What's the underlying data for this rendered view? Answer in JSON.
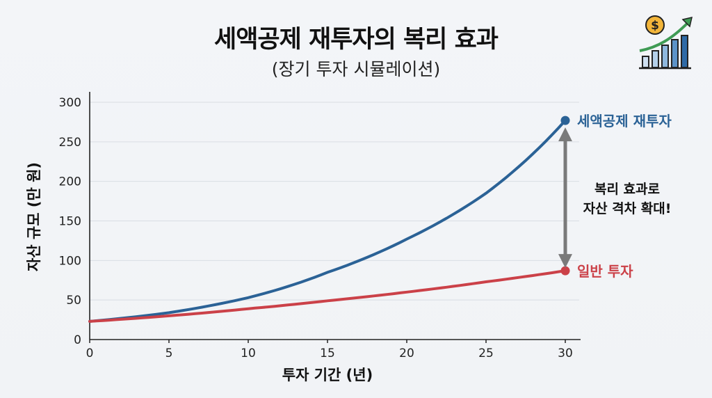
{
  "header": {
    "title": "세액공제 재투자의 복리 효과",
    "subtitle": "(장기 투자 시뮬레이션)"
  },
  "chart_data": {
    "type": "line",
    "title": "세액공제 재투자의 복리 효과",
    "subtitle": "(장기 투자 시뮬레이션)",
    "xlabel": "투자 기간 (년)",
    "ylabel": "자산 규모 (만 원)",
    "xlim": [
      0,
      30
    ],
    "ylim": [
      0,
      300
    ],
    "xticks": [
      0,
      5,
      10,
      15,
      20,
      25,
      30
    ],
    "yticks": [
      0,
      50,
      100,
      150,
      200,
      250,
      300
    ],
    "grid": true,
    "series": [
      {
        "name": "세액공제 재투자",
        "color": "#2b6296",
        "x": [
          0,
          5,
          10,
          15,
          20,
          25,
          30
        ],
        "values": [
          23,
          34,
          53,
          85,
          127,
          185,
          277
        ]
      },
      {
        "name": "일반 투자",
        "color": "#cb4148",
        "x": [
          0,
          5,
          10,
          15,
          20,
          25,
          30
        ],
        "values": [
          23,
          30,
          39,
          49,
          60,
          73,
          87
        ]
      }
    ],
    "annotation": {
      "lines": [
        "복리 효과로",
        "자산 격차 확대!"
      ],
      "at_x": 30
    }
  },
  "colors": {
    "arrow": "#7a7a7a",
    "grid": "#d9dde3",
    "axis": "#222222",
    "logo_coin": "#f2b53a",
    "logo_bar": "#8fb8de",
    "logo_arrow": "#3f9b54"
  },
  "icons": {
    "logo": "growth-chart-coin-icon"
  }
}
